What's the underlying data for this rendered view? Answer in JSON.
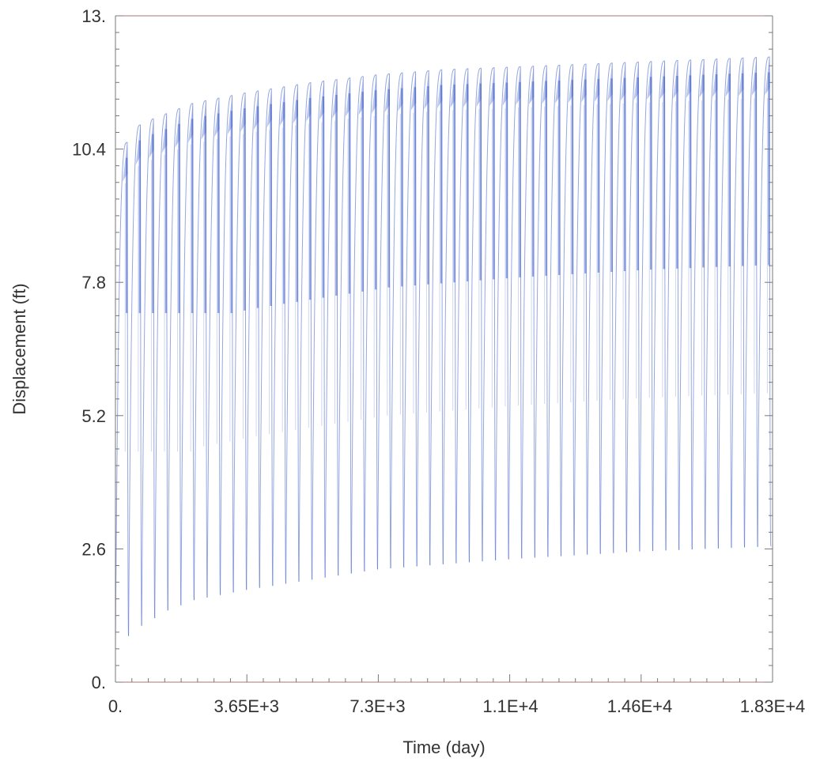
{
  "chart_data": {
    "type": "line",
    "title": "",
    "xlabel": "Time (day)",
    "ylabel": "Displacement (ft)",
    "xlim": [
      0,
      18300
    ],
    "ylim": [
      0,
      13
    ],
    "x_ticks": [
      {
        "value": 0,
        "label": "0."
      },
      {
        "value": 3650,
        "label": "3.65E+3"
      },
      {
        "value": 7300,
        "label": "7.3E+3"
      },
      {
        "value": 11000,
        "label": "1.1E+4"
      },
      {
        "value": 14600,
        "label": "1.46E+4"
      },
      {
        "value": 18300,
        "label": "1.83E+4"
      }
    ],
    "y_ticks": [
      {
        "value": 0,
        "label": "0."
      },
      {
        "value": 2.6,
        "label": "2.6"
      },
      {
        "value": 5.2,
        "label": "5.2"
      },
      {
        "value": 7.8,
        "label": "7.8"
      },
      {
        "value": 10.4,
        "label": "10.4"
      },
      {
        "value": 13,
        "label": "13."
      }
    ],
    "grid": false,
    "series": [
      {
        "color": "#3f5fc8",
        "description_note": "",
        "cycle_period_days": 365,
        "cycles": 50,
        "peak_envelope": {
          "x": [
            0,
            365,
            730,
            1460,
            2190,
            3650,
            5475,
            7300,
            9125,
            11000,
            14600,
            18300
          ],
          "y": [
            9.9,
            10.6,
            10.9,
            11.1,
            11.3,
            11.5,
            11.7,
            11.85,
            11.95,
            12.0,
            12.1,
            12.2
          ]
        },
        "trough_envelope": {
          "x": [
            0,
            365,
            730,
            1460,
            2190,
            3650,
            5475,
            7300,
            9125,
            11000,
            14600,
            18300
          ],
          "y": [
            0.7,
            0.9,
            1.1,
            1.4,
            1.6,
            1.8,
            2.0,
            2.2,
            2.3,
            2.4,
            2.55,
            2.65
          ]
        }
      }
    ]
  }
}
